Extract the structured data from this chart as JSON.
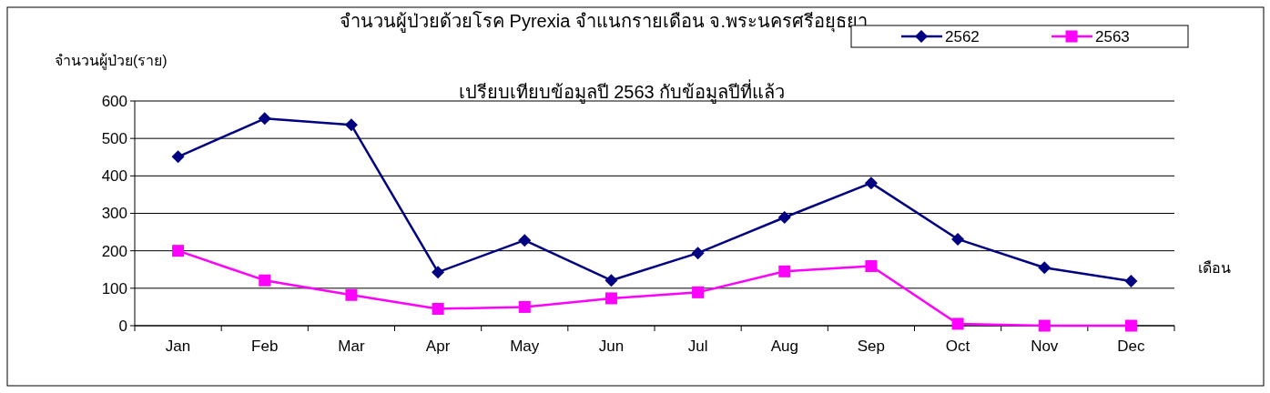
{
  "chart_data": {
    "type": "line",
    "title": "จำนวนผู้ป่วยด้วยโรค  Pyrexia  จำแนกรายเดือน  จ.พระนครศรีอยุธยา",
    "subtitle": "เปรียบเทียบข้อมูลปี  2563  กับข้อมูลปีที่แล้ว",
    "ylabel": "จำนวนผู้ป่วย(ราย)",
    "xlabel": "เดือน",
    "categories": [
      "Jan",
      "Feb",
      "Mar",
      "Apr",
      "May",
      "Jun",
      "Jul",
      "Aug",
      "Sep",
      "Oct",
      "Nov",
      "Dec"
    ],
    "series": [
      {
        "name": "2562",
        "color": "#000080",
        "marker": "diamond",
        "values": [
          451,
          553,
          536,
          143,
          228,
          121,
          194,
          289,
          381,
          231,
          155,
          119
        ]
      },
      {
        "name": "2563",
        "color": "#ff00ff",
        "marker": "square",
        "values": [
          200,
          121,
          82,
          45,
          50,
          73,
          89,
          145,
          159,
          5,
          0,
          0
        ]
      }
    ],
    "ylim": [
      0,
      600
    ],
    "yticks": [
      0,
      100,
      200,
      300,
      400,
      500,
      600
    ],
    "grid": "y",
    "legend": "top right"
  }
}
